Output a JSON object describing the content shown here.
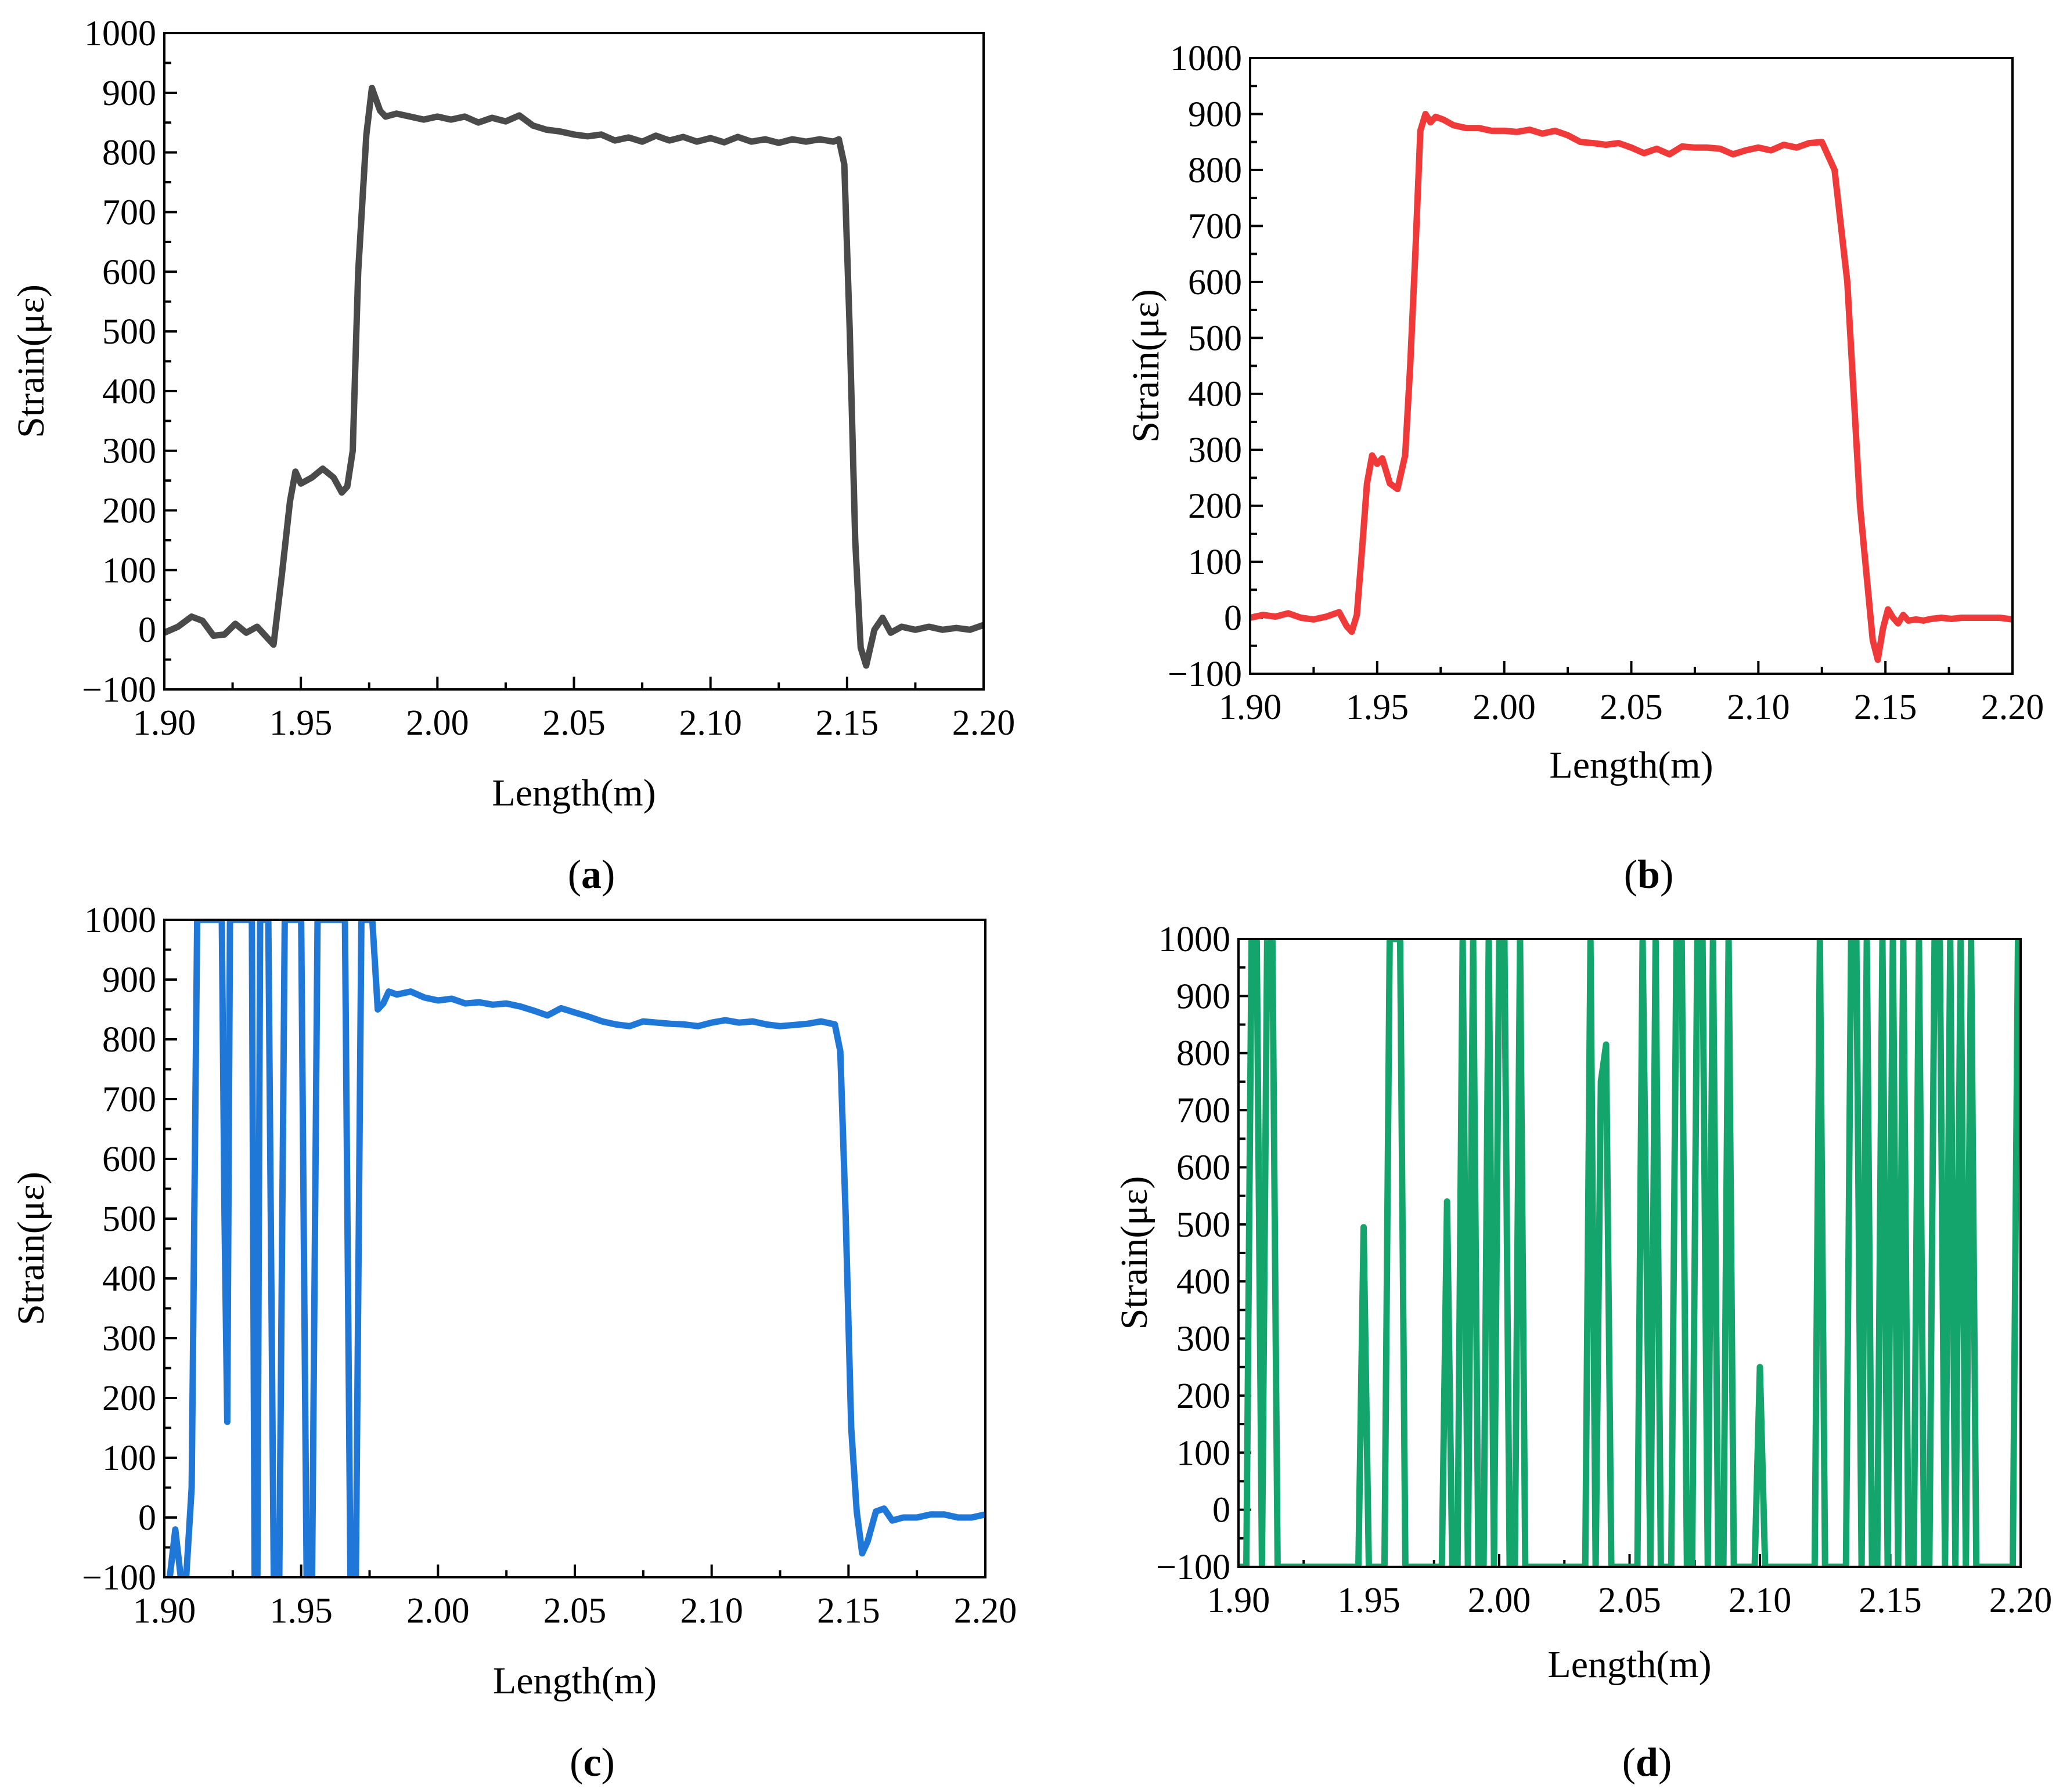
{
  "chart_data": [
    {
      "id": "a",
      "type": "line",
      "panel_label": "a",
      "xlabel": "Length(m)",
      "ylabel": "Strain(με)",
      "xlim": [
        1.9,
        2.2
      ],
      "ylim": [
        -100,
        1000
      ],
      "xticks": [
        1.9,
        1.95,
        2.0,
        2.05,
        2.1,
        2.15,
        2.2
      ],
      "xtick_labels": [
        "1.90",
        "1.95",
        "2.00",
        "2.05",
        "2.10",
        "2.15",
        "2.20"
      ],
      "yticks": [
        -100,
        0,
        100,
        200,
        300,
        400,
        500,
        600,
        700,
        800,
        900,
        1000
      ],
      "ytick_labels": [
        "−100",
        "0",
        "100",
        "200",
        "300",
        "400",
        "500",
        "600",
        "700",
        "800",
        "900",
        "1000"
      ],
      "color": "#4a4a4a",
      "series": [
        {
          "name": "strain",
          "x": [
            1.9,
            1.905,
            1.91,
            1.914,
            1.918,
            1.922,
            1.926,
            1.93,
            1.934,
            1.937,
            1.94,
            1.943,
            1.946,
            1.948,
            1.95,
            1.954,
            1.958,
            1.962,
            1.965,
            1.967,
            1.969,
            1.971,
            1.974,
            1.976,
            1.979,
            1.981,
            1.985,
            1.99,
            1.995,
            2.0,
            2.005,
            2.01,
            2.015,
            2.02,
            2.025,
            2.03,
            2.035,
            2.04,
            2.045,
            2.05,
            2.055,
            2.06,
            2.065,
            2.07,
            2.075,
            2.08,
            2.085,
            2.09,
            2.095,
            2.1,
            2.105,
            2.11,
            2.115,
            2.12,
            2.125,
            2.13,
            2.135,
            2.14,
            2.145,
            2.147,
            2.149,
            2.151,
            2.153,
            2.155,
            2.157,
            2.16,
            2.163,
            2.166,
            2.17,
            2.175,
            2.18,
            2.185,
            2.19,
            2.195,
            2.2
          ],
          "y": [
            -5,
            5,
            22,
            15,
            -10,
            -8,
            10,
            -5,
            5,
            -10,
            -25,
            90,
            215,
            265,
            245,
            255,
            270,
            255,
            230,
            240,
            300,
            600,
            830,
            908,
            870,
            860,
            865,
            860,
            855,
            860,
            855,
            860,
            850,
            858,
            852,
            862,
            845,
            838,
            835,
            830,
            827,
            830,
            820,
            825,
            818,
            828,
            820,
            826,
            818,
            824,
            817,
            826,
            818,
            822,
            816,
            822,
            818,
            822,
            818,
            822,
            780,
            500,
            150,
            -30,
            -60,
            0,
            20,
            -5,
            5,
            0,
            5,
            0,
            3,
            0,
            8
          ]
        }
      ]
    },
    {
      "id": "b",
      "type": "line",
      "panel_label": "b",
      "xlabel": "Length(m)",
      "ylabel": "Strain(με)",
      "xlim": [
        1.9,
        2.2
      ],
      "ylim": [
        -100,
        1000
      ],
      "xticks": [
        1.9,
        1.95,
        2.0,
        2.05,
        2.1,
        2.15,
        2.2
      ],
      "xtick_labels": [
        "1.90",
        "1.95",
        "2.00",
        "2.05",
        "2.10",
        "2.15",
        "2.20"
      ],
      "yticks": [
        -100,
        0,
        100,
        200,
        300,
        400,
        500,
        600,
        700,
        800,
        900,
        1000
      ],
      "ytick_labels": [
        "−100",
        "0",
        "100",
        "200",
        "300",
        "400",
        "500",
        "600",
        "700",
        "800",
        "900",
        "1000"
      ],
      "color": "#f03a3a",
      "series": [
        {
          "name": "strain",
          "x": [
            1.9,
            1.905,
            1.91,
            1.915,
            1.92,
            1.925,
            1.93,
            1.935,
            1.938,
            1.94,
            1.942,
            1.944,
            1.946,
            1.948,
            1.95,
            1.952,
            1.955,
            1.958,
            1.961,
            1.963,
            1.965,
            1.967,
            1.969,
            1.971,
            1.973,
            1.976,
            1.98,
            1.985,
            1.99,
            1.995,
            2.0,
            2.005,
            2.01,
            2.015,
            2.02,
            2.025,
            2.03,
            2.035,
            2.04,
            2.045,
            2.05,
            2.055,
            2.06,
            2.065,
            2.07,
            2.075,
            2.08,
            2.085,
            2.09,
            2.095,
            2.1,
            2.105,
            2.11,
            2.115,
            2.12,
            2.125,
            2.13,
            2.135,
            2.14,
            2.145,
            2.147,
            2.149,
            2.151,
            2.153,
            2.155,
            2.157,
            2.159,
            2.162,
            2.165,
            2.168,
            2.172,
            2.176,
            2.18,
            2.185,
            2.19,
            2.195,
            2.2
          ],
          "y": [
            0,
            5,
            2,
            8,
            0,
            -3,
            2,
            10,
            -15,
            -25,
            5,
            120,
            240,
            290,
            275,
            285,
            240,
            230,
            290,
            450,
            650,
            870,
            900,
            885,
            895,
            890,
            880,
            875,
            875,
            870,
            870,
            868,
            872,
            865,
            870,
            862,
            850,
            848,
            845,
            848,
            840,
            830,
            838,
            828,
            842,
            840,
            840,
            838,
            828,
            835,
            840,
            835,
            845,
            840,
            848,
            850,
            800,
            600,
            200,
            -40,
            -75,
            -20,
            15,
            0,
            -10,
            5,
            -5,
            -3,
            -5,
            -2,
            0,
            -2,
            0,
            0,
            0,
            0,
            -3
          ]
        }
      ]
    },
    {
      "id": "c",
      "type": "line",
      "panel_label": "c",
      "xlabel": "Length(m)",
      "ylabel": "Strain(με)",
      "xlim": [
        1.9,
        2.2
      ],
      "ylim": [
        -100,
        1000
      ],
      "xticks": [
        1.9,
        1.95,
        2.0,
        2.05,
        2.1,
        2.15,
        2.2
      ],
      "xtick_labels": [
        "1.90",
        "1.95",
        "2.00",
        "2.05",
        "2.10",
        "2.15",
        "2.20"
      ],
      "yticks": [
        -100,
        0,
        100,
        200,
        300,
        400,
        500,
        600,
        700,
        800,
        900,
        1000
      ],
      "ytick_labels": [
        "−100",
        "0",
        "100",
        "200",
        "300",
        "400",
        "500",
        "600",
        "700",
        "800",
        "900",
        "1000"
      ],
      "color": "#1f78d8",
      "series": [
        {
          "name": "strain",
          "x": [
            1.902,
            1.904,
            1.905,
            1.906,
            1.908,
            1.91,
            1.912,
            1.914,
            1.917,
            1.919,
            1.921,
            1.922,
            1.923,
            1.924,
            1.925,
            1.926,
            1.928,
            1.93,
            1.932,
            1.933,
            1.934,
            1.935,
            1.936,
            1.938,
            1.94,
            1.942,
            1.944,
            1.946,
            1.948,
            1.95,
            1.952,
            1.954,
            1.956,
            1.958,
            1.96,
            1.962,
            1.964,
            1.966,
            1.968,
            1.97,
            1.972,
            1.974,
            1.976,
            1.978,
            1.98,
            1.982,
            1.985,
            1.99,
            1.995,
            2.0,
            2.005,
            2.01,
            2.015,
            2.02,
            2.025,
            2.03,
            2.035,
            2.04,
            2.045,
            2.05,
            2.055,
            2.06,
            2.065,
            2.07,
            2.075,
            2.08,
            2.085,
            2.09,
            2.095,
            2.1,
            2.105,
            2.11,
            2.115,
            2.12,
            2.125,
            2.13,
            2.135,
            2.14,
            2.145,
            2.147,
            2.149,
            2.151,
            2.153,
            2.155,
            2.157,
            2.16,
            2.163,
            2.166,
            2.17,
            2.175,
            2.18,
            2.185,
            2.19,
            2.195,
            2.2
          ],
          "y": [
            -100,
            -20,
            -60,
            -100,
            -100,
            50,
            1000,
            1000,
            1000,
            1000,
            1000,
            500,
            160,
            1000,
            1000,
            1000,
            1000,
            1000,
            1000,
            -100,
            -100,
            1000,
            1000,
            1000,
            -100,
            -100,
            1000,
            1000,
            1000,
            1000,
            -100,
            -100,
            1000,
            1000,
            1000,
            1000,
            1000,
            1000,
            -100,
            -100,
            1000,
            1000,
            1000,
            850,
            860,
            880,
            875,
            880,
            870,
            865,
            868,
            860,
            862,
            858,
            860,
            855,
            848,
            840,
            852,
            845,
            838,
            830,
            825,
            822,
            830,
            828,
            826,
            825,
            822,
            828,
            832,
            828,
            830,
            825,
            822,
            824,
            826,
            830,
            825,
            780,
            500,
            150,
            10,
            -60,
            -40,
            10,
            15,
            -5,
            0,
            0,
            5,
            5,
            0,
            0,
            5
          ]
        }
      ]
    },
    {
      "id": "d",
      "type": "line",
      "panel_label": "d",
      "xlabel": "Length(m)",
      "ylabel": "Strain(με)",
      "xlim": [
        1.9,
        2.2
      ],
      "ylim": [
        -100,
        1000
      ],
      "xticks": [
        1.9,
        1.95,
        2.0,
        2.05,
        2.1,
        2.15,
        2.2
      ],
      "xtick_labels": [
        "1.90",
        "1.95",
        "2.00",
        "2.05",
        "2.10",
        "2.15",
        "2.20"
      ],
      "yticks": [
        -100,
        0,
        100,
        200,
        300,
        400,
        500,
        600,
        700,
        800,
        900,
        1000
      ],
      "ytick_labels": [
        "−100",
        "0",
        "100",
        "200",
        "300",
        "400",
        "500",
        "600",
        "700",
        "800",
        "900",
        "1000"
      ],
      "color": "#13a56b",
      "series": [
        {
          "name": "strain",
          "x": [
            1.9,
            1.903,
            1.905,
            1.907,
            1.909,
            1.911,
            1.913,
            1.915,
            1.94,
            1.946,
            1.948,
            1.95,
            1.952,
            1.956,
            1.958,
            1.96,
            1.962,
            1.964,
            1.978,
            1.98,
            1.982,
            1.984,
            1.986,
            1.988,
            1.99,
            1.992,
            1.994,
            1.996,
            1.998,
            2.0,
            2.002,
            2.004,
            2.006,
            2.008,
            2.01,
            2.033,
            2.035,
            2.037,
            2.039,
            2.041,
            2.043,
            2.045,
            2.053,
            2.055,
            2.058,
            2.06,
            2.062,
            2.066,
            2.068,
            2.07,
            2.072,
            2.074,
            2.076,
            2.078,
            2.08,
            2.082,
            2.084,
            2.086,
            2.088,
            2.09,
            2.092,
            2.098,
            2.1,
            2.102,
            2.121,
            2.123,
            2.125,
            2.133,
            2.135,
            2.137,
            2.139,
            2.141,
            2.143,
            2.145,
            2.147,
            2.149,
            2.151,
            2.153,
            2.155,
            2.157,
            2.159,
            2.161,
            2.163,
            2.165,
            2.167,
            2.169,
            2.171,
            2.173,
            2.175,
            2.177,
            2.179,
            2.181,
            2.183,
            2.197,
            2.199
          ],
          "y": [
            -100,
            -100,
            1000,
            1000,
            -100,
            1000,
            1000,
            -100,
            -100,
            -100,
            495,
            -100,
            -100,
            -100,
            1000,
            1000,
            1000,
            -100,
            -100,
            540,
            -100,
            -100,
            1000,
            -100,
            1000,
            -100,
            -100,
            1000,
            -100,
            1000,
            1000,
            -100,
            -100,
            1000,
            -100,
            -100,
            1000,
            -100,
            750,
            815,
            -100,
            -100,
            -100,
            1000,
            -100,
            1000,
            -100,
            -100,
            1000,
            1000,
            -100,
            -100,
            1000,
            1000,
            -100,
            1000,
            -100,
            -100,
            1000,
            -100,
            -100,
            -100,
            250,
            -100,
            -100,
            1000,
            -100,
            -100,
            1000,
            1000,
            -100,
            1000,
            -100,
            -100,
            1000,
            -100,
            1000,
            -100,
            1000,
            -100,
            -100,
            1000,
            -100,
            -100,
            1000,
            1000,
            -100,
            1000,
            -100,
            1000,
            -100,
            1000,
            -100,
            -100,
            1000
          ]
        }
      ]
    }
  ]
}
